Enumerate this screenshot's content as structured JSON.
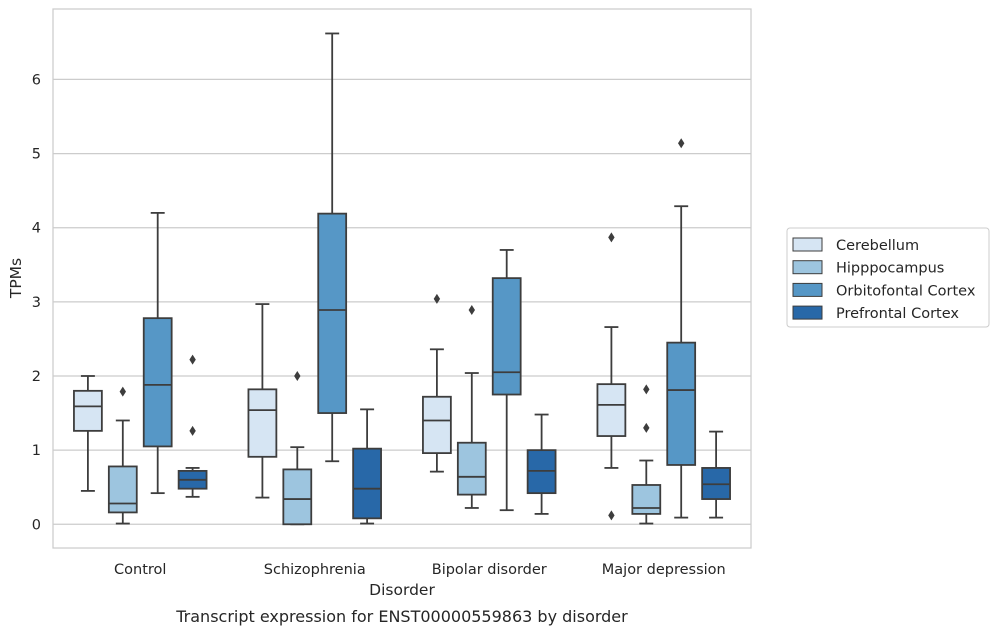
{
  "chart_data": {
    "type": "box",
    "caption": "Transcript expression for ENST00000559863 by disorder",
    "xlabel": "Disorder",
    "ylabel": "TPMs",
    "ylim": [
      -0.32,
      6.95
    ],
    "yticks": [
      "0",
      "1",
      "2",
      "3",
      "4",
      "5",
      "6"
    ],
    "grid": "horizontal",
    "legend_position": "right",
    "categories": [
      "Control",
      "Schizophrenia",
      "Bipolar disorder",
      "Major depression"
    ],
    "series": [
      {
        "name": "Cerebellum",
        "color": "#d6e5f3",
        "boxes": [
          {
            "whislo": 0.45,
            "q1": 1.26,
            "med": 1.59,
            "q3": 1.8,
            "whishi": 2.0,
            "fliers": []
          },
          {
            "whislo": 0.36,
            "q1": 0.91,
            "med": 1.54,
            "q3": 1.82,
            "whishi": 2.97,
            "fliers": []
          },
          {
            "whislo": 0.71,
            "q1": 0.96,
            "med": 1.4,
            "q3": 1.72,
            "whishi": 2.36,
            "fliers": [
              3.04
            ]
          },
          {
            "whislo": 0.76,
            "q1": 1.19,
            "med": 1.61,
            "q3": 1.89,
            "whishi": 2.66,
            "fliers": [
              3.87,
              0.12
            ]
          }
        ]
      },
      {
        "name": "Hipppocampus",
        "color": "#9dc5df",
        "boxes": [
          {
            "whislo": 0.01,
            "q1": 0.16,
            "med": 0.28,
            "q3": 0.78,
            "whishi": 1.4,
            "fliers": [
              1.79
            ]
          },
          {
            "whislo": 0.0,
            "q1": 0.0,
            "med": 0.34,
            "q3": 0.74,
            "whishi": 1.04,
            "fliers": [
              2.0
            ]
          },
          {
            "whislo": 0.22,
            "q1": 0.4,
            "med": 0.64,
            "q3": 1.1,
            "whishi": 2.04,
            "fliers": [
              2.89
            ]
          },
          {
            "whislo": 0.01,
            "q1": 0.14,
            "med": 0.22,
            "q3": 0.53,
            "whishi": 0.86,
            "fliers": [
              1.82,
              1.3
            ]
          }
        ]
      },
      {
        "name": "Orbitofontal Cortex",
        "color": "#5697c6",
        "boxes": [
          {
            "whislo": 0.42,
            "q1": 1.05,
            "med": 1.88,
            "q3": 2.78,
            "whishi": 4.2,
            "fliers": []
          },
          {
            "whislo": 0.85,
            "q1": 1.5,
            "med": 2.89,
            "q3": 4.19,
            "whishi": 6.62,
            "fliers": []
          },
          {
            "whislo": 0.19,
            "q1": 1.75,
            "med": 2.05,
            "q3": 3.32,
            "whishi": 3.7,
            "fliers": []
          },
          {
            "whislo": 0.09,
            "q1": 0.8,
            "med": 1.81,
            "q3": 2.45,
            "whishi": 4.29,
            "fliers": [
              5.14
            ]
          }
        ]
      },
      {
        "name": "Prefrontal Cortex",
        "color": "#2868a8",
        "boxes": [
          {
            "whislo": 0.37,
            "q1": 0.48,
            "med": 0.6,
            "q3": 0.72,
            "whishi": 0.76,
            "fliers": [
              2.22,
              1.26
            ]
          },
          {
            "whislo": 0.01,
            "q1": 0.08,
            "med": 0.48,
            "q3": 1.02,
            "whishi": 1.55,
            "fliers": []
          },
          {
            "whislo": 0.14,
            "q1": 0.42,
            "med": 0.72,
            "q3": 1.0,
            "whishi": 1.48,
            "fliers": []
          },
          {
            "whislo": 0.09,
            "q1": 0.34,
            "med": 0.54,
            "q3": 0.76,
            "whishi": 1.25,
            "fliers": []
          }
        ]
      }
    ]
  }
}
